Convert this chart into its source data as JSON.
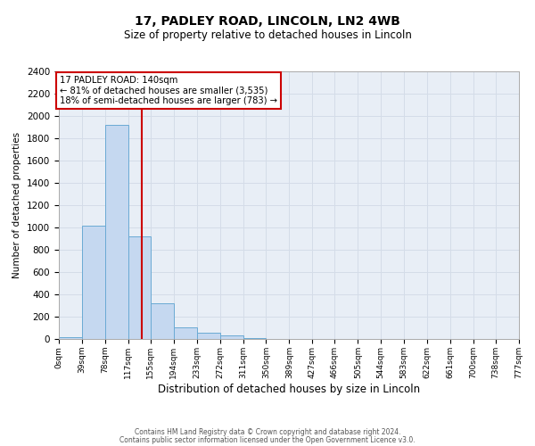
{
  "title": "17, PADLEY ROAD, LINCOLN, LN2 4WB",
  "subtitle": "Size of property relative to detached houses in Lincoln",
  "xlabel": "Distribution of detached houses by size in Lincoln",
  "ylabel": "Number of detached properties",
  "bin_edges": [
    0,
    39,
    78,
    117,
    155,
    194,
    233,
    272,
    311,
    350,
    389,
    427,
    466,
    505,
    544,
    583,
    622,
    661,
    700,
    738,
    777
  ],
  "bar_heights": [
    20,
    1020,
    1920,
    920,
    320,
    108,
    55,
    30,
    5,
    0,
    0,
    0,
    0,
    0,
    0,
    0,
    0,
    0,
    0,
    0
  ],
  "property_size": 140,
  "bar_color": "#c5d8f0",
  "bar_edge_color": "#6aaad4",
  "red_line_color": "#cc0000",
  "annotation_line1": "17 PADLEY ROAD: 140sqm",
  "annotation_line2": "← 81% of detached houses are smaller (3,535)",
  "annotation_line3": "18% of semi-detached houses are larger (783) →",
  "annotation_box_color": "#ffffff",
  "annotation_box_edge_color": "#cc0000",
  "ylim": [
    0,
    2400
  ],
  "footnote1": "Contains HM Land Registry data © Crown copyright and database right 2024.",
  "footnote2": "Contains public sector information licensed under the Open Government Licence v3.0.",
  "tick_labels": [
    "0sqm",
    "39sqm",
    "78sqm",
    "117sqm",
    "155sqm",
    "194sqm",
    "233sqm",
    "272sqm",
    "311sqm",
    "350sqm",
    "389sqm",
    "427sqm",
    "466sqm",
    "505sqm",
    "544sqm",
    "583sqm",
    "622sqm",
    "661sqm",
    "700sqm",
    "738sqm",
    "777sqm"
  ],
  "yticks": [
    0,
    200,
    400,
    600,
    800,
    1000,
    1200,
    1400,
    1600,
    1800,
    2000,
    2200,
    2400
  ],
  "grid_color": "#d4dce8",
  "background_color": "#e8eef6",
  "fig_width": 6.0,
  "fig_height": 5.0,
  "title_fontsize": 10,
  "subtitle_fontsize": 8.5,
  "xlabel_fontsize": 8.5,
  "ylabel_fontsize": 7.5,
  "xtick_fontsize": 6.5,
  "ytick_fontsize": 7.5,
  "footnote_fontsize": 5.5
}
